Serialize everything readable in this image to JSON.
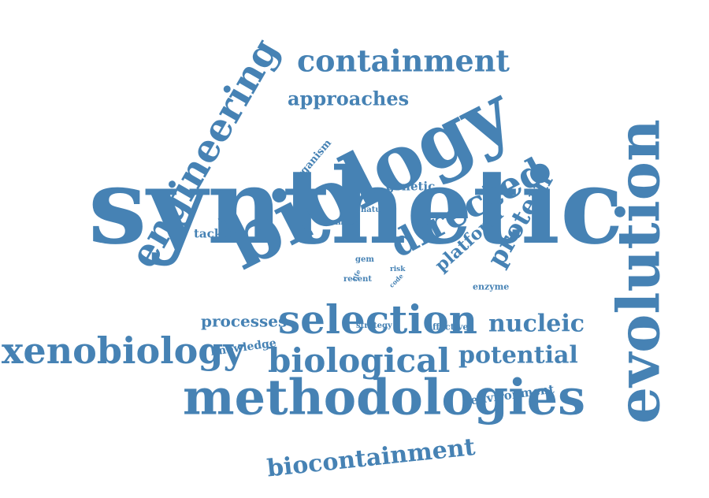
{
  "color": "#4682B4",
  "words": [
    {
      "text": "synthetic"
    },
    {
      "text": "biology"
    },
    {
      "text": "evolution"
    },
    {
      "text": "methodologies"
    },
    {
      "text": "engineering"
    },
    {
      "text": "selection"
    },
    {
      "text": "xenobiology"
    },
    {
      "text": "biological"
    },
    {
      "text": "directed"
    },
    {
      "text": "containment"
    },
    {
      "text": "biocontainment"
    },
    {
      "text": "potential"
    },
    {
      "text": "nucleic"
    },
    {
      "text": "protein"
    },
    {
      "text": "approaches"
    },
    {
      "text": "platform"
    },
    {
      "text": "processes"
    },
    {
      "text": "environment"
    },
    {
      "text": "knowledge"
    },
    {
      "text": "tackling"
    },
    {
      "text": "genetic"
    },
    {
      "text": "organism"
    },
    {
      "text": "enzyme"
    },
    {
      "text": "effective"
    },
    {
      "text": "strategy"
    },
    {
      "text": "natural"
    },
    {
      "text": "number"
    },
    {
      "text": "recent"
    },
    {
      "text": "gem"
    },
    {
      "text": "life"
    },
    {
      "text": "risk"
    },
    {
      "text": "code"
    }
  ]
}
